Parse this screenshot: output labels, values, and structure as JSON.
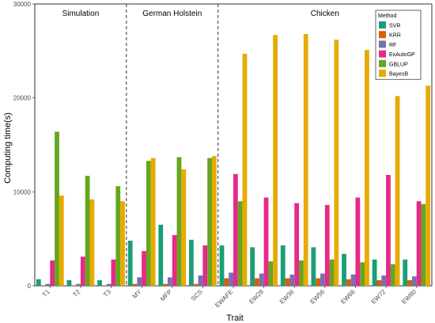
{
  "chart_data": {
    "type": "bar",
    "xlabel": "Trait",
    "ylabel": "Computing time(s)",
    "ylim": [
      0,
      30000
    ],
    "yticks": [
      0,
      10000,
      20000,
      30000
    ],
    "grid": false,
    "legend": {
      "title": "Method",
      "position": "top-right"
    },
    "groups": [
      {
        "label": "Simulation",
        "categories": [
          "T1",
          "T2",
          "T3"
        ]
      },
      {
        "label": "German Holstein",
        "categories": [
          "MY",
          "MFP",
          "SCS"
        ]
      },
      {
        "label": "Chicken",
        "categories": [
          "EWAFE",
          "EW28",
          "EW36",
          "EW56",
          "EW66",
          "EW72",
          "EW80"
        ]
      }
    ],
    "categories": [
      "T1",
      "T2",
      "T3",
      "MY",
      "MFP",
      "SCS",
      "EWAFE",
      "EW28",
      "EW36",
      "EW56",
      "EW66",
      "EW72",
      "EW80"
    ],
    "series": [
      {
        "name": "SVR",
        "color": "#1b9e77",
        "values": [
          700,
          600,
          600,
          4800,
          6500,
          4900,
          4300,
          4100,
          4300,
          4100,
          3400,
          2800,
          2800
        ]
      },
      {
        "name": "KRR",
        "color": "#d95f02",
        "values": [
          50,
          50,
          50,
          200,
          200,
          200,
          800,
          800,
          800,
          800,
          700,
          600,
          600
        ]
      },
      {
        "name": "RF",
        "color": "#7570b3",
        "values": [
          200,
          200,
          200,
          900,
          900,
          1100,
          1400,
          1300,
          1200,
          1300,
          1200,
          1100,
          1000
        ]
      },
      {
        "name": "ExAutoGP",
        "color": "#e7298a",
        "values": [
          2700,
          3100,
          2800,
          3700,
          5400,
          4300,
          11900,
          9400,
          8800,
          8600,
          9400,
          11800,
          9000
        ]
      },
      {
        "name": "GBLUP",
        "color": "#66a61e",
        "values": [
          16400,
          11700,
          10600,
          13300,
          13700,
          13600,
          9000,
          2600,
          2700,
          2800,
          2500,
          2300,
          8700
        ]
      },
      {
        "name": "BayesB",
        "color": "#e6ab02",
        "values": [
          9600,
          9200,
          9000,
          13600,
          12400,
          13800,
          24700,
          26700,
          26800,
          26200,
          25100,
          20200,
          21300
        ]
      }
    ]
  }
}
